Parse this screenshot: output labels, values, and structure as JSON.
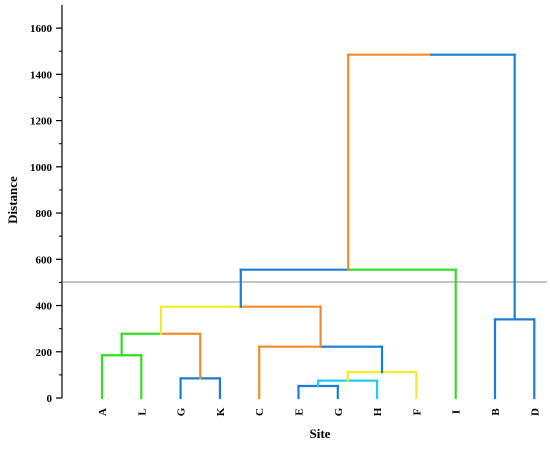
{
  "chart_data": {
    "type": "dendrogram",
    "title": "",
    "xlabel": "Site",
    "ylabel": "Distance",
    "ylim": [
      0,
      1700
    ],
    "y_ticks": [
      0,
      200,
      400,
      600,
      800,
      1000,
      1200,
      1400,
      1600
    ],
    "y_minor_step": 100,
    "threshold_line": 502,
    "leaves": [
      "A",
      "L",
      "G",
      "K",
      "C",
      "E",
      "G",
      "H",
      "F",
      "I",
      "B",
      "D"
    ],
    "merges": [
      {
        "left": 0,
        "right": 1,
        "height": 185,
        "color": "#33dd22"
      },
      {
        "left": 2,
        "right": 3,
        "height": 85,
        "color": "#1a7fd4"
      },
      {
        "left": 5,
        "right": 6,
        "height": 52,
        "color": "#1a7fd4"
      },
      {
        "left": 14,
        "right": 7,
        "height": 75,
        "color": "#22ccee"
      },
      {
        "left": 15,
        "right": 8,
        "height": 112,
        "color": "#eeee22"
      },
      {
        "left": 4,
        "right": 16,
        "height": 222,
        "color": "#f28c28",
        "right_color": "#1a7fd4"
      },
      {
        "left": 12,
        "right": 13,
        "height": 278,
        "color": "#33dd22",
        "right_color": "#f28c28"
      },
      {
        "left": 18,
        "right": 17,
        "height": 395,
        "color": "#eeee22",
        "right_color": "#f28c28"
      },
      {
        "left": 19,
        "right": 9,
        "height": 555,
        "color": "#1a7fd4",
        "right_color": "#33dd22"
      },
      {
        "left": 10,
        "right": 11,
        "height": 340,
        "color": "#1a7fd4"
      },
      {
        "left": 20,
        "right": 21,
        "height": 1485,
        "color": "#f28c28",
        "right_color": "#1a7fd4"
      }
    ]
  }
}
